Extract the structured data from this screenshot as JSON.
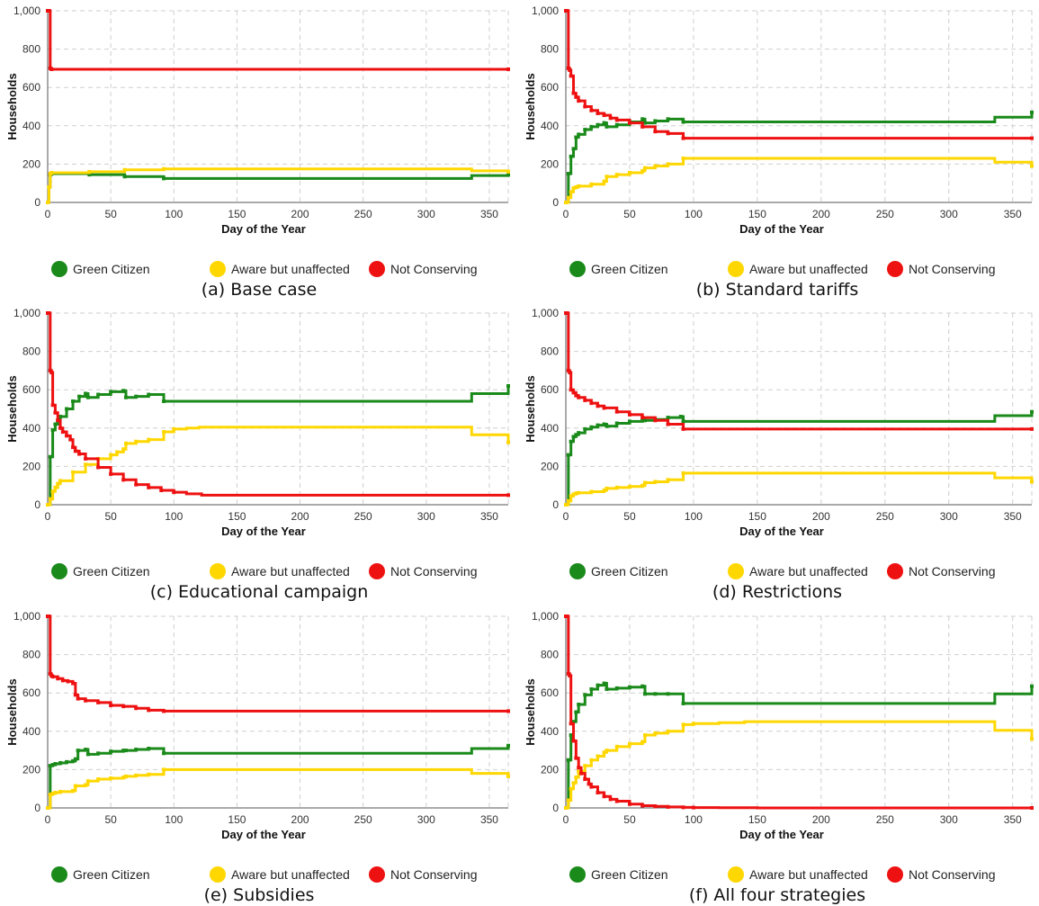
{
  "legend": {
    "green_label": "Green Citizen",
    "aware_label": "Aware but unaffected",
    "not_label": "Not Conserving"
  },
  "colors": {
    "green": "#1a8a1a",
    "aware": "#ffd700",
    "not": "#ee1111",
    "grid": "#cfcfcf",
    "axis": "#555555"
  },
  "chart_data": [
    {
      "type": "line",
      "caption": "(a) Base case",
      "xlabel": "Day of the Year",
      "ylabel": "Households",
      "xlim": [
        0,
        365
      ],
      "ylim": [
        0,
        1000
      ],
      "xticks": [
        0,
        50,
        100,
        150,
        200,
        250,
        300,
        350
      ],
      "yticks": [
        0,
        200,
        400,
        600,
        800,
        1000
      ],
      "ytick_labels": [
        "0",
        "200",
        "400",
        "600",
        "800",
        "1,000"
      ],
      "grid": true,
      "series": [
        {
          "name": "Green Citizen",
          "color": "#1a8a1a",
          "x": [
            0,
            1,
            2,
            3,
            33,
            61,
            92,
            305,
            336,
            365
          ],
          "y": [
            0,
            80,
            145,
            150,
            145,
            135,
            125,
            125,
            140,
            145
          ]
        },
        {
          "name": "Aware but unaffected",
          "color": "#ffd700",
          "x": [
            0,
            1,
            2,
            3,
            33,
            61,
            92,
            305,
            336,
            365
          ],
          "y": [
            0,
            80,
            150,
            155,
            160,
            170,
            175,
            175,
            165,
            160
          ]
        },
        {
          "name": "Not Conserving",
          "color": "#ee1111",
          "x": [
            0,
            1,
            2,
            3,
            365
          ],
          "y": [
            1000,
            1000,
            700,
            695,
            695
          ]
        }
      ]
    },
    {
      "type": "line",
      "caption": "(b) Standard tariffs",
      "xlabel": "Day of the Year",
      "ylabel": "Households",
      "xlim": [
        0,
        365
      ],
      "ylim": [
        0,
        1000
      ],
      "xticks": [
        0,
        50,
        100,
        150,
        200,
        250,
        300,
        350
      ],
      "yticks": [
        0,
        200,
        400,
        600,
        800,
        1000
      ],
      "ytick_labels": [
        "0",
        "200",
        "400",
        "600",
        "800",
        "1,000"
      ],
      "grid": true,
      "series": [
        {
          "name": "Green Citizen",
          "color": "#1a8a1a",
          "x": [
            0,
            2,
            4,
            6,
            8,
            10,
            15,
            20,
            25,
            30,
            32,
            40,
            50,
            60,
            62,
            70,
            80,
            92,
            305,
            336,
            365
          ],
          "y": [
            0,
            150,
            240,
            280,
            340,
            355,
            380,
            395,
            405,
            415,
            395,
            405,
            420,
            435,
            415,
            425,
            435,
            420,
            420,
            445,
            470
          ]
        },
        {
          "name": "Aware but unaffected",
          "color": "#ffd700",
          "x": [
            0,
            2,
            4,
            6,
            8,
            10,
            20,
            30,
            32,
            40,
            50,
            60,
            62,
            70,
            80,
            92,
            305,
            336,
            365
          ],
          "y": [
            0,
            25,
            55,
            75,
            80,
            85,
            95,
            110,
            135,
            145,
            155,
            165,
            180,
            190,
            200,
            230,
            230,
            210,
            190
          ]
        },
        {
          "name": "Not Conserving",
          "color": "#ee1111",
          "x": [
            0,
            1,
            2,
            3,
            4,
            6,
            8,
            10,
            15,
            20,
            25,
            30,
            35,
            40,
            50,
            60,
            70,
            80,
            92,
            365
          ],
          "y": [
            1000,
            1000,
            700,
            690,
            660,
            570,
            550,
            530,
            500,
            480,
            465,
            455,
            440,
            430,
            415,
            395,
            370,
            360,
            335,
            335
          ]
        }
      ]
    },
    {
      "type": "line",
      "caption": "(c) Educational campaign",
      "xlabel": "Day of the Year",
      "ylabel": "Households",
      "xlim": [
        0,
        365
      ],
      "ylim": [
        0,
        1000
      ],
      "xticks": [
        0,
        50,
        100,
        150,
        200,
        250,
        300,
        350
      ],
      "yticks": [
        0,
        200,
        400,
        600,
        800,
        1000
      ],
      "ytick_labels": [
        "0",
        "200",
        "400",
        "600",
        "800",
        "1,000"
      ],
      "grid": true,
      "series": [
        {
          "name": "Green Citizen",
          "color": "#1a8a1a",
          "x": [
            0,
            2,
            4,
            6,
            8,
            10,
            15,
            20,
            25,
            30,
            32,
            40,
            50,
            60,
            62,
            70,
            80,
            92,
            305,
            336,
            365
          ],
          "y": [
            0,
            250,
            390,
            420,
            440,
            460,
            500,
            540,
            565,
            580,
            560,
            575,
            590,
            595,
            560,
            565,
            575,
            540,
            540,
            580,
            620
          ]
        },
        {
          "name": "Aware but unaffected",
          "color": "#ffd700",
          "x": [
            0,
            2,
            4,
            6,
            8,
            10,
            20,
            30,
            40,
            50,
            55,
            60,
            62,
            70,
            80,
            92,
            100,
            110,
            120,
            305,
            336,
            365
          ],
          "y": [
            0,
            30,
            70,
            90,
            110,
            125,
            170,
            210,
            240,
            260,
            275,
            290,
            320,
            330,
            340,
            380,
            395,
            400,
            405,
            405,
            365,
            325
          ]
        },
        {
          "name": "Not Conserving",
          "color": "#ee1111",
          "x": [
            0,
            1,
            2,
            3,
            4,
            6,
            8,
            10,
            12,
            15,
            18,
            20,
            22,
            25,
            30,
            40,
            50,
            60,
            70,
            80,
            90,
            100,
            110,
            122,
            365
          ],
          "y": [
            1000,
            1000,
            700,
            690,
            520,
            480,
            440,
            400,
            380,
            360,
            340,
            300,
            280,
            265,
            240,
            195,
            160,
            130,
            105,
            90,
            75,
            65,
            57,
            50,
            50
          ]
        }
      ]
    },
    {
      "type": "line",
      "caption": "(d) Restrictions",
      "xlabel": "Day of the Year",
      "ylabel": "Households",
      "xlim": [
        0,
        365
      ],
      "ylim": [
        0,
        1000
      ],
      "xticks": [
        0,
        50,
        100,
        150,
        200,
        250,
        300,
        350
      ],
      "yticks": [
        0,
        200,
        400,
        600,
        800,
        1000
      ],
      "ytick_labels": [
        "0",
        "200",
        "400",
        "600",
        "800",
        "1,000"
      ],
      "grid": true,
      "series": [
        {
          "name": "Green Citizen",
          "color": "#1a8a1a",
          "x": [
            0,
            2,
            4,
            6,
            8,
            10,
            15,
            20,
            25,
            30,
            32,
            40,
            50,
            60,
            62,
            70,
            80,
            90,
            92,
            305,
            336,
            365
          ],
          "y": [
            0,
            260,
            330,
            355,
            365,
            375,
            395,
            405,
            415,
            420,
            410,
            425,
            435,
            440,
            440,
            445,
            455,
            460,
            435,
            435,
            465,
            485
          ]
        },
        {
          "name": "Aware but unaffected",
          "color": "#ffd700",
          "x": [
            0,
            2,
            4,
            6,
            8,
            10,
            20,
            30,
            32,
            40,
            50,
            60,
            62,
            70,
            80,
            92,
            305,
            336,
            365
          ],
          "y": [
            0,
            20,
            45,
            55,
            60,
            62,
            68,
            75,
            85,
            90,
            95,
            100,
            115,
            120,
            130,
            165,
            165,
            140,
            120
          ]
        },
        {
          "name": "Not Conserving",
          "color": "#ee1111",
          "x": [
            0,
            1,
            2,
            3,
            4,
            6,
            8,
            10,
            15,
            20,
            25,
            30,
            40,
            50,
            60,
            70,
            80,
            92,
            365
          ],
          "y": [
            1000,
            1000,
            700,
            690,
            600,
            585,
            570,
            560,
            545,
            530,
            515,
            505,
            485,
            470,
            455,
            440,
            420,
            395,
            395
          ]
        }
      ]
    },
    {
      "type": "line",
      "caption": "(e) Subsidies",
      "xlabel": "Day of the Year",
      "ylabel": "Households",
      "xlim": [
        0,
        365
      ],
      "ylim": [
        0,
        1000
      ],
      "xticks": [
        0,
        50,
        100,
        150,
        200,
        250,
        300,
        350
      ],
      "yticks": [
        0,
        200,
        400,
        600,
        800,
        1000
      ],
      "ytick_labels": [
        "0",
        "200",
        "400",
        "600",
        "800",
        "1,000"
      ],
      "grid": true,
      "series": [
        {
          "name": "Green Citizen",
          "color": "#1a8a1a",
          "x": [
            0,
            2,
            4,
            6,
            10,
            15,
            20,
            22,
            24,
            30,
            32,
            40,
            50,
            60,
            62,
            70,
            80,
            92,
            305,
            336,
            365
          ],
          "y": [
            0,
            220,
            225,
            230,
            235,
            240,
            245,
            255,
            300,
            305,
            280,
            285,
            295,
            300,
            300,
            305,
            310,
            285,
            285,
            310,
            325
          ]
        },
        {
          "name": "Aware but unaffected",
          "color": "#ffd700",
          "x": [
            0,
            2,
            4,
            6,
            10,
            20,
            22,
            30,
            32,
            40,
            50,
            60,
            62,
            70,
            80,
            92,
            305,
            336,
            365
          ],
          "y": [
            0,
            70,
            75,
            80,
            85,
            90,
            115,
            120,
            140,
            150,
            155,
            160,
            165,
            170,
            175,
            200,
            200,
            180,
            165
          ]
        },
        {
          "name": "Not Conserving",
          "color": "#ee1111",
          "x": [
            0,
            1,
            2,
            3,
            4,
            8,
            12,
            16,
            20,
            22,
            24,
            30,
            40,
            50,
            60,
            70,
            80,
            92,
            365
          ],
          "y": [
            1000,
            1000,
            700,
            690,
            685,
            675,
            665,
            660,
            650,
            590,
            570,
            560,
            550,
            535,
            530,
            520,
            510,
            505,
            505
          ]
        }
      ]
    },
    {
      "type": "line",
      "caption": "(f) All four strategies",
      "xlabel": "Day of the Year",
      "ylabel": "Households",
      "xlim": [
        0,
        365
      ],
      "ylim": [
        0,
        1000
      ],
      "xticks": [
        0,
        50,
        100,
        150,
        200,
        250,
        300,
        350
      ],
      "yticks": [
        0,
        200,
        400,
        600,
        800,
        1000
      ],
      "ytick_labels": [
        "0",
        "200",
        "400",
        "600",
        "800",
        "1,000"
      ],
      "grid": true,
      "series": [
        {
          "name": "Green Citizen",
          "color": "#1a8a1a",
          "x": [
            0,
            2,
            4,
            6,
            8,
            10,
            15,
            20,
            25,
            30,
            32,
            40,
            50,
            60,
            62,
            70,
            80,
            92,
            305,
            336,
            365
          ],
          "y": [
            0,
            250,
            380,
            450,
            500,
            540,
            590,
            620,
            640,
            650,
            620,
            625,
            630,
            635,
            595,
            595,
            595,
            545,
            545,
            595,
            635
          ]
        },
        {
          "name": "Aware but unaffected",
          "color": "#ffd700",
          "x": [
            0,
            2,
            4,
            6,
            8,
            10,
            15,
            20,
            25,
            30,
            32,
            40,
            50,
            60,
            62,
            70,
            80,
            92,
            100,
            120,
            140,
            305,
            336,
            365
          ],
          "y": [
            0,
            40,
            100,
            130,
            160,
            190,
            220,
            250,
            270,
            290,
            300,
            320,
            335,
            345,
            380,
            390,
            400,
            435,
            440,
            445,
            450,
            450,
            405,
            360
          ]
        },
        {
          "name": "Not Conserving",
          "color": "#ee1111",
          "x": [
            0,
            1,
            2,
            3,
            4,
            6,
            8,
            10,
            12,
            15,
            18,
            20,
            25,
            30,
            35,
            40,
            50,
            60,
            70,
            80,
            92,
            100,
            120,
            150,
            365
          ],
          "y": [
            1000,
            1000,
            700,
            690,
            440,
            350,
            260,
            210,
            180,
            150,
            125,
            110,
            80,
            60,
            45,
            35,
            20,
            12,
            8,
            5,
            3,
            2,
            1,
            0,
            0
          ]
        }
      ]
    }
  ]
}
